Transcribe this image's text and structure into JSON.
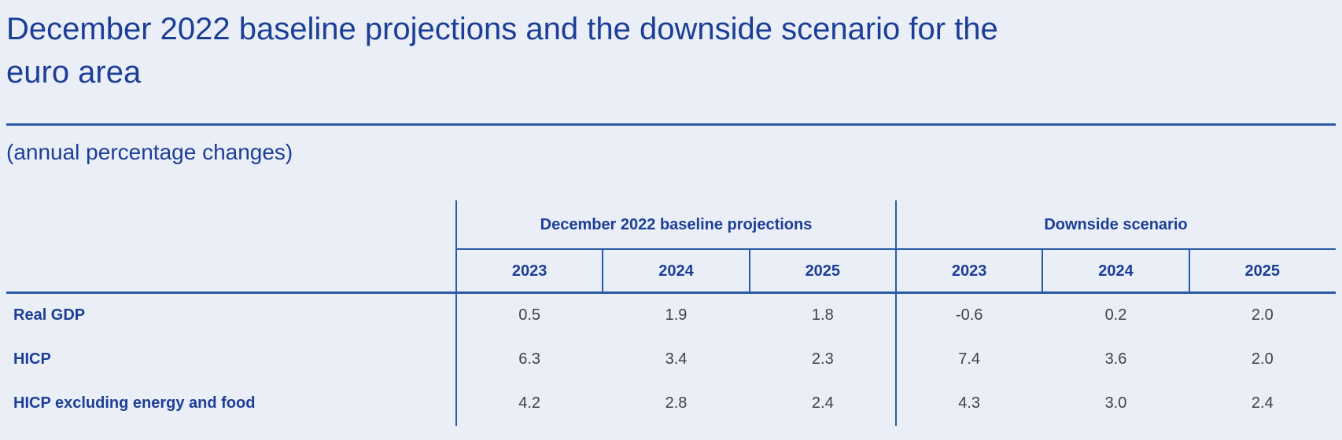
{
  "page": {
    "title_line1": "December 2022 baseline projections and the downside scenario for the",
    "title_line2": "euro area",
    "subtitle": "(annual percentage changes)"
  },
  "colors": {
    "background": "#e9eef7",
    "accent_blue_text": "#1d3e97",
    "border_blue": "#2d5aa6",
    "value_text": "#3f4347"
  },
  "table": {
    "group_headers": [
      "December 2022 baseline projections",
      "Downside scenario"
    ],
    "years": [
      "2023",
      "2024",
      "2025",
      "2023",
      "2024",
      "2025"
    ],
    "rows": [
      {
        "label": "Real GDP",
        "values": [
          "0.5",
          "1.9",
          "1.8",
          "-0.6",
          "0.2",
          "2.0"
        ]
      },
      {
        "label": "HICP",
        "values": [
          "6.3",
          "3.4",
          "2.3",
          "7.4",
          "3.6",
          "2.0"
        ]
      },
      {
        "label": "HICP excluding energy and food",
        "values": [
          "4.2",
          "2.8",
          "2.4",
          "4.3",
          "3.0",
          "2.4"
        ]
      }
    ]
  },
  "chart_data": {
    "type": "table",
    "title": "December 2022 baseline projections and the downside scenario for the euro area",
    "units": "annual percentage changes",
    "column_groups": [
      {
        "name": "December 2022 baseline projections",
        "columns": [
          "2023",
          "2024",
          "2025"
        ]
      },
      {
        "name": "Downside scenario",
        "columns": [
          "2023",
          "2024",
          "2025"
        ]
      }
    ],
    "rows": [
      {
        "label": "Real GDP",
        "baseline": [
          0.5,
          1.9,
          1.8
        ],
        "downside": [
          -0.6,
          0.2,
          2.0
        ]
      },
      {
        "label": "HICP",
        "baseline": [
          6.3,
          3.4,
          2.3
        ],
        "downside": [
          7.4,
          3.6,
          2.0
        ]
      },
      {
        "label": "HICP excluding energy and food",
        "baseline": [
          4.2,
          2.8,
          2.4
        ],
        "downside": [
          4.3,
          3.0,
          2.4
        ]
      }
    ]
  }
}
